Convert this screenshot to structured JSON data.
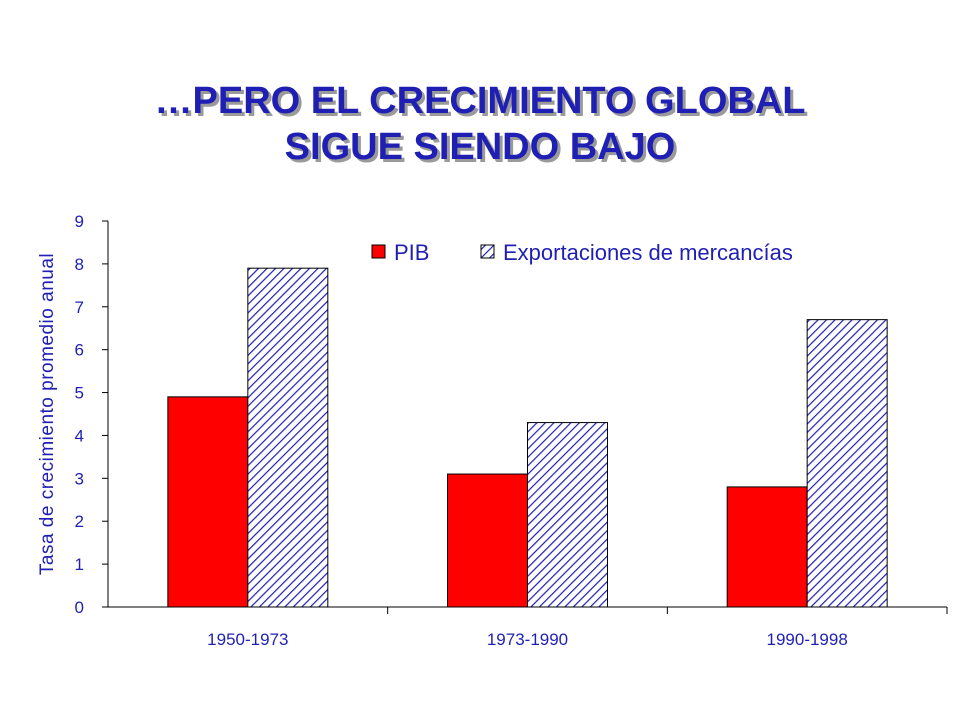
{
  "title": {
    "line1": "…PERO EL CRECIMIENTO GLOBAL",
    "line2": "SIGUE SIENDO BAJO"
  },
  "colors": {
    "text": "#1f1fb4",
    "pib": "#ff0000",
    "exports_hatch": "#1f1fb4"
  },
  "chart_data": {
    "type": "bar",
    "title": "…PERO EL CRECIMIENTO GLOBAL SIGUE SIENDO BAJO",
    "xlabel": "",
    "ylabel": "Tasa de crecimiento promedio anual",
    "categories": [
      "1950-1973",
      "1973-1990",
      "1990-1998"
    ],
    "series": [
      {
        "name": "PIB",
        "values": [
          4.9,
          3.1,
          2.8
        ],
        "fill": "solid-red"
      },
      {
        "name": "Exportaciones de mercancías",
        "values": [
          7.9,
          4.3,
          6.7
        ],
        "fill": "diagonal-hatch"
      }
    ],
    "ylim": [
      0,
      9
    ],
    "yticks": [
      0,
      1,
      2,
      3,
      4,
      5,
      6,
      7,
      8,
      9
    ],
    "grid": false,
    "legend_position": "top-right"
  }
}
